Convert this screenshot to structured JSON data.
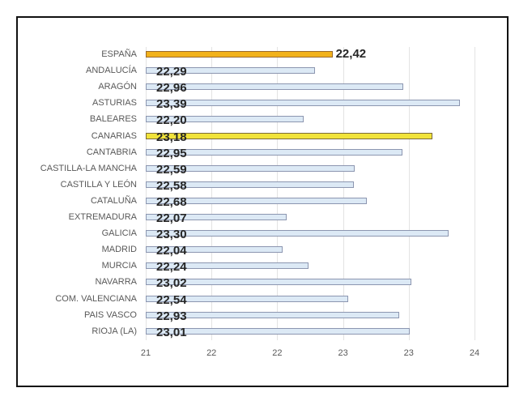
{
  "chart_data": {
    "type": "bar",
    "orientation": "horizontal",
    "title": "",
    "xlabel": "",
    "ylabel": "",
    "xlim": [
      21,
      23.5
    ],
    "grid": true,
    "legend": null,
    "categories": [
      "ESPAÑA",
      "ANDALUCÍA",
      "ARAGÓN",
      "ASTURIAS",
      "BALEARES",
      "CANARIAS",
      "CANTABRIA",
      "CASTILLA-LA MANCHA",
      "CASTILLA Y LEÓN",
      "CATALUÑA",
      "EXTREMADURA",
      "GALICIA",
      "MADRID",
      "MURCIA",
      "NAVARRA",
      "COM. VALENCIANA",
      "PAIS VASCO",
      "RIOJA (LA)"
    ],
    "values": [
      22.42,
      22.29,
      22.96,
      23.39,
      22.2,
      23.18,
      22.95,
      22.59,
      22.58,
      22.68,
      22.07,
      23.3,
      22.04,
      22.24,
      23.02,
      22.54,
      22.93,
      23.01
    ],
    "value_labels": [
      "22,42",
      "22,29",
      "22,96",
      "23,39",
      "22,20",
      "23,18",
      "22,95",
      "22,59",
      "22,58",
      "22,68",
      "22,07",
      "23,30",
      "22,04",
      "22,24",
      "23,02",
      "22,54",
      "22,93",
      "23,01"
    ],
    "tick_values": [
      21,
      21.5,
      22,
      22.5,
      23,
      23.5
    ],
    "tick_labels": [
      "21",
      "22",
      "22",
      "23",
      "23",
      "24"
    ],
    "colors": {
      "default": "#dce9f5",
      "spain": "#f2b21b",
      "highlight": "#f1e33a"
    },
    "highlighted": {
      "ESPAÑA": "spain",
      "CANARIAS": "highlight"
    }
  }
}
